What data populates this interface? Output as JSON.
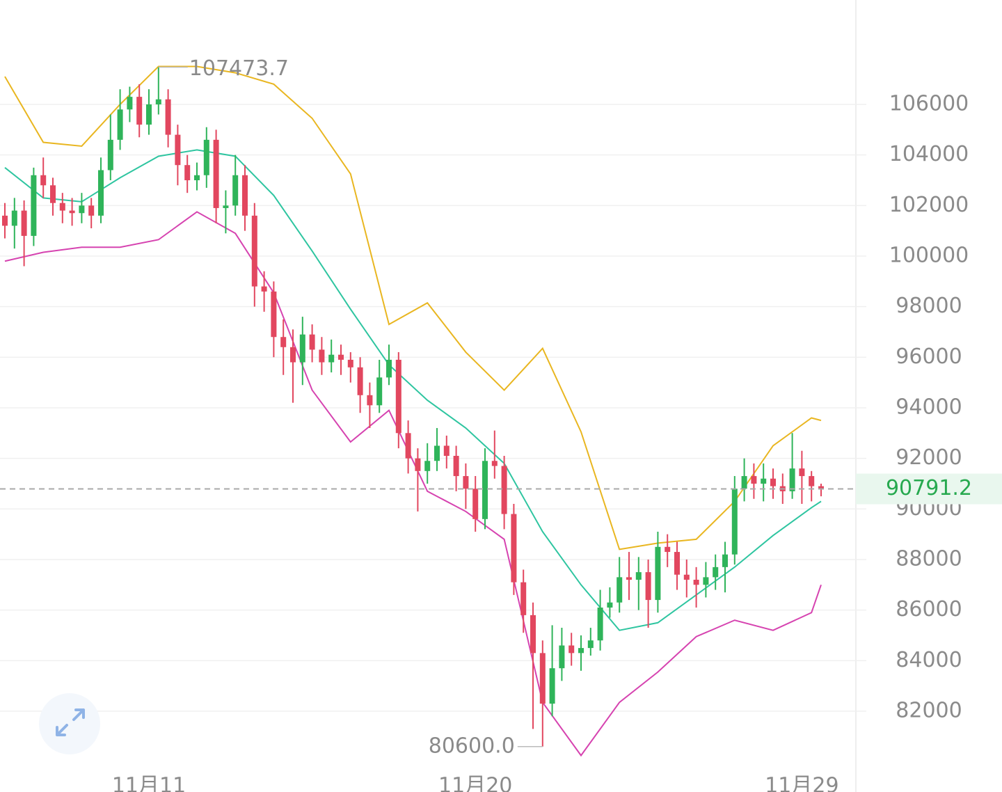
{
  "chart_data": {
    "type": "candlestick",
    "categories": [
      null,
      null,
      null,
      null,
      null,
      null,
      null,
      null,
      null,
      null,
      null,
      null,
      null,
      null,
      null,
      "11月11",
      null,
      null,
      null,
      null,
      null,
      null,
      null,
      null,
      null,
      null,
      null,
      null,
      null,
      null,
      null,
      null,
      null,
      null,
      null,
      null,
      null,
      null,
      null,
      null,
      null,
      null,
      null,
      null,
      null,
      null,
      null,
      null,
      null,
      "11月20",
      null,
      null,
      null,
      null,
      null,
      null,
      null,
      null,
      null,
      null,
      null,
      null,
      null,
      null,
      null,
      null,
      null,
      null,
      null,
      null,
      null,
      null,
      null,
      null,
      null,
      null,
      null,
      null,
      null,
      null,
      null,
      null,
      null,
      "11月29",
      null,
      null
    ],
    "open": [
      101600,
      101200,
      101800,
      100800,
      103200,
      102800,
      102100,
      101800,
      101700,
      102000,
      101600,
      103400,
      104600,
      105800,
      106300,
      105200,
      106000,
      106200,
      104800,
      103600,
      103000,
      103200,
      104600,
      101900,
      102000,
      103200,
      101600,
      98800,
      98600,
      96800,
      96400,
      95800,
      96900,
      96300,
      95800,
      96100,
      95900,
      95600,
      94500,
      94100,
      95200,
      95900,
      93000,
      92000,
      91500,
      91900,
      92500,
      92100,
      91300,
      90800,
      89600,
      91900,
      91700,
      89800,
      87100,
      85800,
      84300,
      82300,
      83700,
      84600,
      84300,
      84500,
      84800,
      86100,
      86300,
      87300,
      87200,
      87500,
      86400,
      88500,
      88300,
      87400,
      87200,
      87000,
      87300,
      87700,
      88200,
      90800,
      91300,
      91000,
      91200,
      90900,
      90700,
      91600,
      91300,
      90900
    ],
    "high": [
      102100,
      102300,
      102200,
      103500,
      103900,
      103100,
      102500,
      102300,
      102500,
      102300,
      103900,
      105600,
      106600,
      106700,
      106800,
      106600,
      107473.7,
      106600,
      105200,
      104000,
      103700,
      105100,
      105000,
      102600,
      104000,
      103600,
      102100,
      99400,
      99000,
      97500,
      97100,
      97600,
      97300,
      96800,
      96700,
      96500,
      96200,
      96000,
      95000,
      95900,
      96500,
      96200,
      93500,
      92400,
      92600,
      93200,
      92900,
      92500,
      91800,
      91300,
      92400,
      93100,
      92100,
      90200,
      87600,
      86300,
      84800,
      85400,
      85300,
      85100,
      85000,
      85300,
      86800,
      86900,
      88100,
      88300,
      88100,
      88000,
      89100,
      89000,
      88700,
      88000,
      87700,
      87900,
      88200,
      88700,
      91300,
      92000,
      91800,
      91800,
      91600,
      91400,
      93000,
      92300,
      91500,
      91000
    ],
    "low": [
      100700,
      100300,
      99600,
      100400,
      102300,
      101600,
      101300,
      101200,
      101300,
      101100,
      101300,
      103000,
      104200,
      105300,
      104700,
      104800,
      105600,
      104300,
      102800,
      102500,
      102600,
      102700,
      101300,
      100900,
      101600,
      101000,
      98000,
      97800,
      96000,
      95300,
      94200,
      94900,
      95800,
      95300,
      95400,
      95300,
      95000,
      93800,
      93200,
      93800,
      94900,
      92400,
      91400,
      89900,
      91000,
      91500,
      91600,
      90700,
      90000,
      89100,
      89200,
      91200,
      89200,
      86600,
      85100,
      81300,
      80600,
      81800,
      83200,
      83800,
      83600,
      84200,
      84400,
      85700,
      85900,
      86400,
      86000,
      85300,
      85900,
      87700,
      86800,
      86500,
      86100,
      86500,
      86800,
      86700,
      87800,
      90300,
      90400,
      90300,
      90400,
      90200,
      90400,
      90200,
      90300,
      90500
    ],
    "close": [
      101200,
      101800,
      100800,
      103200,
      102800,
      102100,
      101800,
      101700,
      102000,
      101600,
      103400,
      104600,
      105800,
      106300,
      105200,
      106000,
      106200,
      104800,
      103600,
      103000,
      103200,
      104600,
      101900,
      102000,
      103200,
      101600,
      98800,
      98600,
      96800,
      96400,
      95800,
      96900,
      96300,
      95800,
      96100,
      95900,
      95600,
      94500,
      94100,
      95200,
      95900,
      93000,
      92000,
      91500,
      91900,
      92500,
      92100,
      91300,
      90800,
      89600,
      91900,
      91700,
      89800,
      87100,
      85800,
      84300,
      82300,
      83700,
      84600,
      84300,
      84500,
      84800,
      86100,
      86300,
      87300,
      87200,
      87500,
      86400,
      88500,
      88300,
      87400,
      87200,
      87000,
      87300,
      87700,
      88200,
      90800,
      91300,
      91000,
      91200,
      90900,
      90700,
      91600,
      91300,
      90900,
      90791.2
    ],
    "low_label": "80600.0",
    "up_color": "#2fb45a",
    "down_color": "#e2475f",
    "last_price_color": "#27a94f",
    "band_x": [
      0,
      4,
      8,
      12,
      16,
      20,
      24,
      28,
      32,
      36,
      40,
      44,
      48,
      52,
      56,
      60,
      64,
      68,
      72,
      76,
      80,
      84,
      85
    ],
    "bands": [
      {
        "color": "#e9b620",
        "values": [
          107100,
          104500,
          104350,
          106000,
          107500,
          107500,
          107250,
          106800,
          105450,
          103250,
          97300,
          98150,
          96200,
          94700,
          96350,
          93050,
          88400,
          88650,
          88800,
          90300,
          92500,
          93600,
          93500
        ]
      },
      {
        "color": "#2ec5a0",
        "values": [
          103500,
          102300,
          102150,
          103100,
          103950,
          104200,
          103950,
          102400,
          100200,
          97900,
          95700,
          94300,
          93200,
          91800,
          89100,
          87000,
          85200,
          85500,
          86600,
          87700,
          88950,
          90050,
          90300
        ]
      },
      {
        "color": "#d643b0",
        "values": [
          99800,
          100150,
          100350,
          100350,
          100650,
          101750,
          100900,
          98550,
          94700,
          92650,
          93900,
          90700,
          89900,
          88800,
          82350,
          80250,
          82350,
          83550,
          84950,
          85600,
          85200,
          85900,
          87000
        ]
      }
    ],
    "ylim": [
      79163,
      110129
    ],
    "yticks": [
      82000,
      84000,
      86000,
      88000,
      90000,
      92000,
      94000,
      96000,
      98000,
      100000,
      102000,
      104000,
      106000
    ],
    "grid": true
  }
}
